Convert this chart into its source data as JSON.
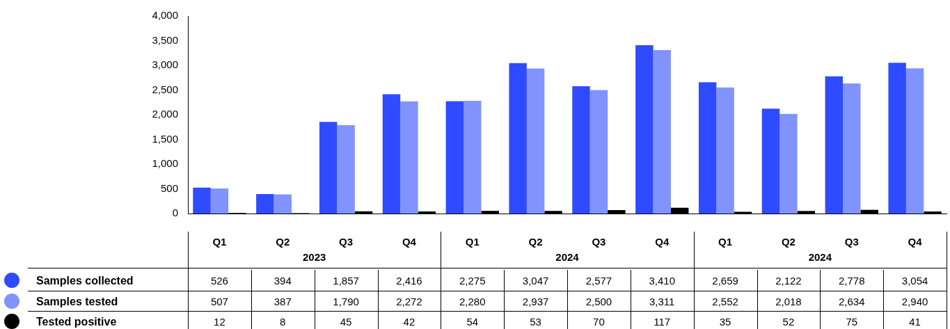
{
  "chart_data": {
    "type": "bar",
    "categories": [
      "Q1",
      "Q2",
      "Q3",
      "Q4",
      "Q1",
      "Q2",
      "Q3",
      "Q4",
      "Q1",
      "Q2",
      "Q3",
      "Q4"
    ],
    "annotations": [
      "2023",
      "2024",
      "2024"
    ],
    "series": [
      {
        "name": "Samples collected",
        "color": "#2f4bff",
        "values": [
          526,
          394,
          1857,
          2416,
          2275,
          3047,
          2577,
          3410,
          2659,
          2122,
          2778,
          3054
        ],
        "value_labels": [
          "526",
          "394",
          "1,857",
          "2,416",
          "2,275",
          "3,047",
          "2,577",
          "3,410",
          "2,659",
          "2,122",
          "2,778",
          "3,054"
        ]
      },
      {
        "name": "Samples tested",
        "color": "#8093ff",
        "values": [
          507,
          387,
          1790,
          2272,
          2280,
          2937,
          2500,
          3311,
          2552,
          2018,
          2634,
          2940
        ],
        "value_labels": [
          "507",
          "387",
          "1,790",
          "2,272",
          "2,280",
          "2,937",
          "2,500",
          "3,311",
          "2,552",
          "2,018",
          "2,634",
          "2,940"
        ]
      },
      {
        "name": "Tested positive",
        "color": "#000000",
        "values": [
          12,
          8,
          45,
          42,
          54,
          53,
          70,
          117,
          35,
          52,
          75,
          41
        ],
        "value_labels": [
          "12",
          "8",
          "45",
          "42",
          "54",
          "53",
          "70",
          "117",
          "35",
          "52",
          "75",
          "41"
        ]
      }
    ],
    "ylim": [
      0,
      4000
    ],
    "yticks": [
      {
        "value": 0,
        "label": "0"
      },
      {
        "value": 500,
        "label": "500"
      },
      {
        "value": 1000,
        "label": "1,000"
      },
      {
        "value": 1500,
        "label": "1,500"
      },
      {
        "value": 2000,
        "label": "2,000"
      },
      {
        "value": 2500,
        "label": "2,500"
      },
      {
        "value": 3000,
        "label": "3,000"
      },
      {
        "value": 3500,
        "label": "3,500"
      },
      {
        "value": 4000,
        "label": "4,000"
      }
    ],
    "grid": false,
    "legend": "bottom"
  }
}
